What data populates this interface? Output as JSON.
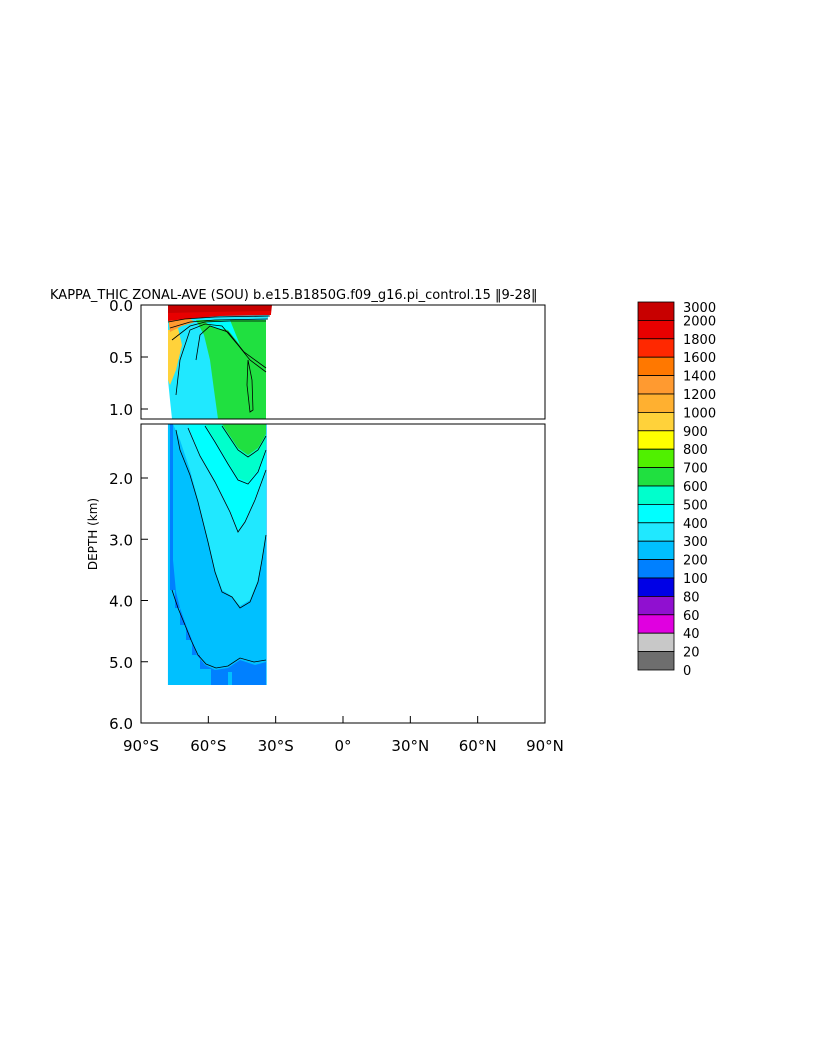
{
  "chart_data": {
    "type": "heatmap",
    "title": "KAPPA_THIC ZONAL-AVE (SOU) b.e15.B1850G.f09_g16.pi_control.15 ‖9-28‖",
    "ylabel": "DEPTH (km)",
    "xlabel": "",
    "x_range": [
      -90,
      90
    ],
    "y_range_km": [
      0,
      6
    ],
    "y_break_km": 1.15,
    "x_ticks": [
      "90°S",
      "60°S",
      "30°S",
      "0°",
      "30°N",
      "60°N",
      "90°N"
    ],
    "y_ticks_upper": [
      "0.0",
      "0.5",
      "1.0"
    ],
    "y_ticks_lower": [
      "2.0",
      "3.0",
      "4.0",
      "5.0",
      "6.0"
    ],
    "data_extent": {
      "lat_south": -78,
      "lat_north": -34,
      "max_depth_km": 5.4
    },
    "colorbar": {
      "labels": [
        "3000",
        "2000",
        "1800",
        "1600",
        "1400",
        "1200",
        "1000",
        "900",
        "800",
        "700",
        "600",
        "500",
        "400",
        "300",
        "200",
        "100",
        "80",
        "60",
        "40",
        "20",
        "0"
      ],
      "colors": [
        "#c80000",
        "#e80000",
        "#ff2800",
        "#ff7800",
        "#ff9a30",
        "#ffb030",
        "#ffd23a",
        "#ffff00",
        "#50f000",
        "#20e040",
        "#00ffcc",
        "#00ffff",
        "#20e8ff",
        "#00c0ff",
        "#0080ff",
        "#0000e6",
        "#9010d0",
        "#e000e0",
        "#c8c8c8",
        "#6e6e6e"
      ]
    },
    "field_description_values": {
      "surface_band": 3000,
      "upper_core": 600,
      "deep_interior": 300,
      "abyssal_edge": 200
    }
  }
}
